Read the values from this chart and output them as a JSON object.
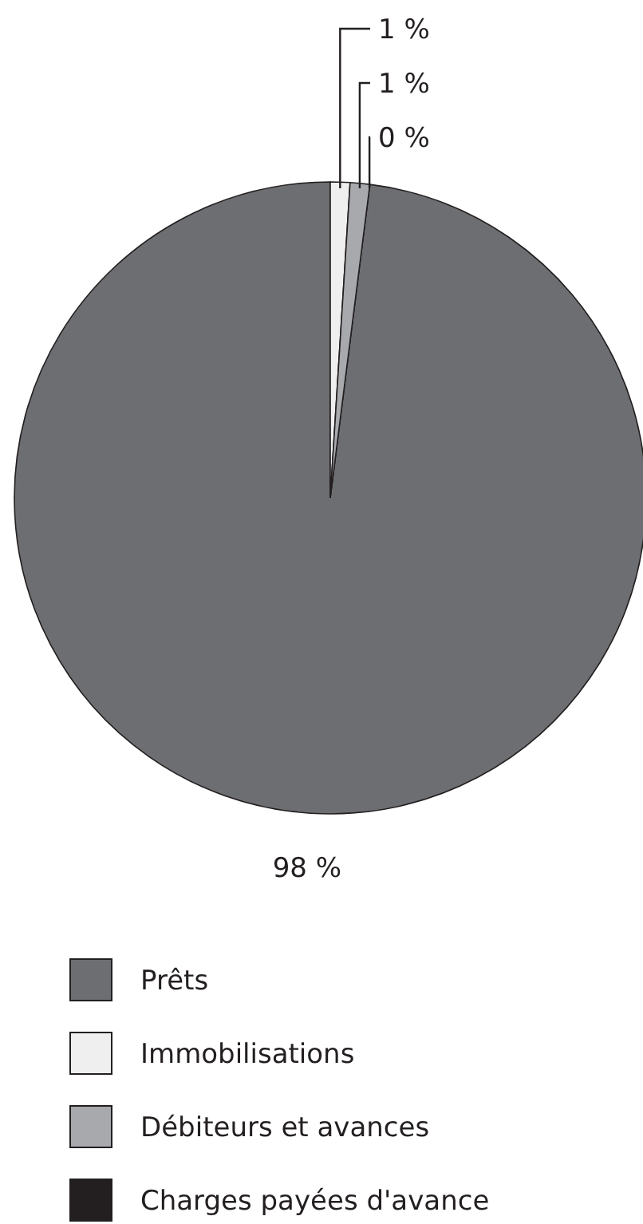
{
  "chart_data": {
    "type": "pie",
    "categories": [
      "Prêts",
      "Immobilisations",
      "Débiteurs et avances",
      "Charges payées d'avance"
    ],
    "values": [
      98,
      1,
      1,
      0
    ],
    "colors": [
      "#6d6e71",
      "#efefef",
      "#a7a9ac",
      "#231f20"
    ],
    "value_labels": [
      "98 %",
      "1 %",
      "1 %",
      "0 %"
    ],
    "legend": "bottom"
  }
}
